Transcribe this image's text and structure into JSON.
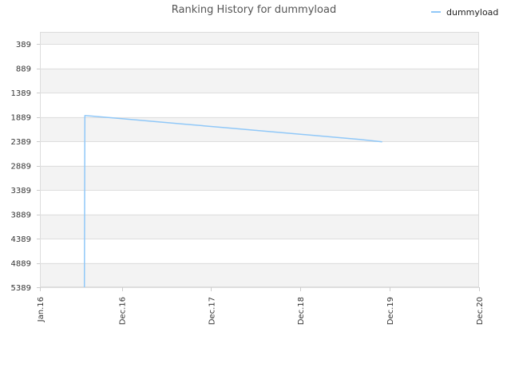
{
  "chart_data": {
    "type": "line",
    "title": "Ranking History for dummyload",
    "xlabel": "",
    "ylabel": "",
    "y_inverted": true,
    "ylim": [
      5389,
      139
    ],
    "y_ticks": [
      389,
      889,
      1389,
      1889,
      2389,
      2889,
      3389,
      3889,
      4389,
      4889,
      5389
    ],
    "x_range": [
      "2016-01",
      "2020-12"
    ],
    "x_ticks": [
      {
        "date": "2016-01",
        "label": "Jan.16"
      },
      {
        "date": "2016-12",
        "label": "Dec.16"
      },
      {
        "date": "2017-12",
        "label": "Dec.17"
      },
      {
        "date": "2018-12",
        "label": "Dec.18"
      },
      {
        "date": "2019-12",
        "label": "Dec.19"
      },
      {
        "date": "2020-12",
        "label": "Dec.20"
      }
    ],
    "grid": true,
    "band_colors": [
      "#f3f3f3",
      "#ffffff"
    ],
    "legend_position": "top-right",
    "series": [
      {
        "name": "dummyload",
        "color": "#90c8f8",
        "points": [
          {
            "x": "2016-07-01",
            "y": 5389
          },
          {
            "x": "2016-07-03",
            "y": 1860
          },
          {
            "x": "2016-08-01",
            "y": 1870
          },
          {
            "x": "2017-02-01",
            "y": 1950
          },
          {
            "x": "2017-08-01",
            "y": 2030
          },
          {
            "x": "2018-02-01",
            "y": 2110
          },
          {
            "x": "2018-08-01",
            "y": 2190
          },
          {
            "x": "2019-02-01",
            "y": 2270
          },
          {
            "x": "2019-08-01",
            "y": 2350
          },
          {
            "x": "2019-11-01",
            "y": 2400
          }
        ]
      }
    ]
  }
}
